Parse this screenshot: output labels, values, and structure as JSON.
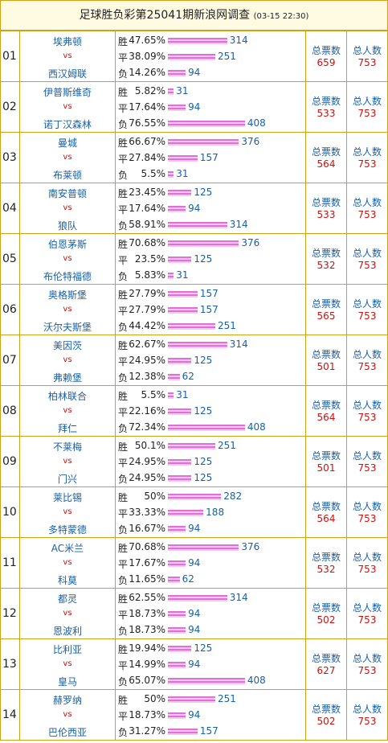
{
  "header": {
    "title": "足球胜负彩第25041期新浪网调查",
    "time": "(03-15 22:30)"
  },
  "labels": {
    "vs": "vs",
    "win": "胜",
    "draw": "平",
    "lose": "负",
    "total_votes": "总票数",
    "total_people": "总人数"
  },
  "table": {
    "rows": [
      {
        "id": "01",
        "home": "埃弗顿",
        "away": "西汉姆联",
        "outcomes": [
          {
            "pct": "47.65%",
            "count": 314
          },
          {
            "pct": "38.09%",
            "count": 251
          },
          {
            "pct": "14.26%",
            "count": 94
          }
        ],
        "total_votes": 659,
        "total_people": 753
      },
      {
        "id": "02",
        "home": "伊普斯维奇",
        "away": "诺丁汉森林",
        "outcomes": [
          {
            "pct": "5.82%",
            "count": 31
          },
          {
            "pct": "17.64%",
            "count": 94
          },
          {
            "pct": "76.55%",
            "count": 408
          }
        ],
        "total_votes": 533,
        "total_people": 753
      },
      {
        "id": "03",
        "home": "曼城",
        "away": "布莱顿",
        "outcomes": [
          {
            "pct": "66.67%",
            "count": 376
          },
          {
            "pct": "27.84%",
            "count": 157
          },
          {
            "pct": "5.5%",
            "count": 31
          }
        ],
        "total_votes": 564,
        "total_people": 753
      },
      {
        "id": "04",
        "home": "南安普顿",
        "away": "狼队",
        "outcomes": [
          {
            "pct": "23.45%",
            "count": 125
          },
          {
            "pct": "17.64%",
            "count": 94
          },
          {
            "pct": "58.91%",
            "count": 314
          }
        ],
        "total_votes": 533,
        "total_people": 753
      },
      {
        "id": "05",
        "home": "伯恩茅斯",
        "away": "布伦特福德",
        "outcomes": [
          {
            "pct": "70.68%",
            "count": 376
          },
          {
            "pct": "23.5%",
            "count": 125
          },
          {
            "pct": "5.83%",
            "count": 31
          }
        ],
        "total_votes": 532,
        "total_people": 753
      },
      {
        "id": "06",
        "home": "奥格斯堡",
        "away": "沃尔夫斯堡",
        "outcomes": [
          {
            "pct": "27.79%",
            "count": 157
          },
          {
            "pct": "27.79%",
            "count": 157
          },
          {
            "pct": "44.42%",
            "count": 251
          }
        ],
        "total_votes": 565,
        "total_people": 753
      },
      {
        "id": "07",
        "home": "美因茨",
        "away": "弗赖堡",
        "outcomes": [
          {
            "pct": "62.67%",
            "count": 314
          },
          {
            "pct": "24.95%",
            "count": 125
          },
          {
            "pct": "12.38%",
            "count": 62
          }
        ],
        "total_votes": 501,
        "total_people": 753
      },
      {
        "id": "08",
        "home": "柏林联合",
        "away": "拜仁",
        "outcomes": [
          {
            "pct": "5.5%",
            "count": 31
          },
          {
            "pct": "22.16%",
            "count": 125
          },
          {
            "pct": "72.34%",
            "count": 408
          }
        ],
        "total_votes": 564,
        "total_people": 753
      },
      {
        "id": "09",
        "home": "不莱梅",
        "away": "门兴",
        "outcomes": [
          {
            "pct": "50.1%",
            "count": 251
          },
          {
            "pct": "24.95%",
            "count": 125
          },
          {
            "pct": "24.95%",
            "count": 125
          }
        ],
        "total_votes": 501,
        "total_people": 753
      },
      {
        "id": "10",
        "home": "莱比锡",
        "away": "多特蒙德",
        "outcomes": [
          {
            "pct": "50%",
            "count": 282
          },
          {
            "pct": "33.33%",
            "count": 188
          },
          {
            "pct": "16.67%",
            "count": 94
          }
        ],
        "total_votes": 564,
        "total_people": 753
      },
      {
        "id": "11",
        "home": "AC米兰",
        "away": "科莫",
        "outcomes": [
          {
            "pct": "70.68%",
            "count": 376
          },
          {
            "pct": "17.67%",
            "count": 94
          },
          {
            "pct": "11.65%",
            "count": 62
          }
        ],
        "total_votes": 532,
        "total_people": 753
      },
      {
        "id": "12",
        "home": "都灵",
        "away": "恩波利",
        "outcomes": [
          {
            "pct": "62.55%",
            "count": 314
          },
          {
            "pct": "18.73%",
            "count": 94
          },
          {
            "pct": "18.73%",
            "count": 94
          }
        ],
        "total_votes": 502,
        "total_people": 753
      },
      {
        "id": "13",
        "home": "比利亚",
        "away": "皇马",
        "outcomes": [
          {
            "pct": "19.94%",
            "count": 125
          },
          {
            "pct": "14.99%",
            "count": 94
          },
          {
            "pct": "65.07%",
            "count": 408
          }
        ],
        "total_votes": 627,
        "total_people": 753
      },
      {
        "id": "14",
        "home": "赫罗纳",
        "away": "巴伦西亚",
        "outcomes": [
          {
            "pct": "50%",
            "count": 251
          },
          {
            "pct": "18.73%",
            "count": 94
          },
          {
            "pct": "31.27%",
            "count": 157
          }
        ],
        "total_votes": 502,
        "total_people": 753
      }
    ]
  }
}
